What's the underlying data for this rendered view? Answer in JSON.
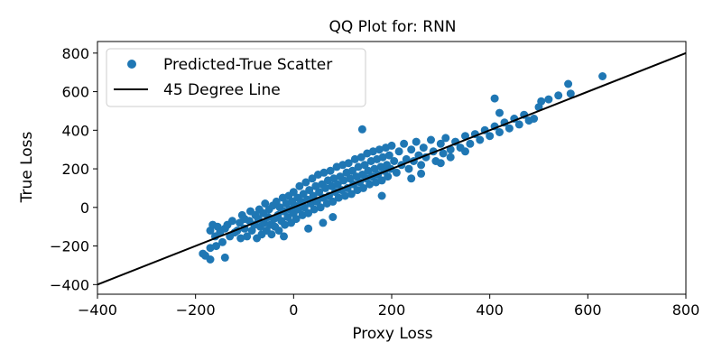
{
  "chart_data": {
    "type": "scatter",
    "title": "QQ Plot for: RNN",
    "xlabel": "Proxy Loss",
    "ylabel": "True Loss",
    "xlim": [
      -400,
      800
    ],
    "ylim": [
      -450,
      860
    ],
    "xticks": [
      -400,
      -200,
      0,
      200,
      400,
      600,
      800
    ],
    "yticks": [
      -400,
      -200,
      0,
      200,
      400,
      600,
      800
    ],
    "grid": false,
    "legend_position": "top-left",
    "series": [
      {
        "name": "Predicted-True Scatter",
        "kind": "scatter",
        "color": "#1f77b4",
        "points": [
          [
            -170,
            -120
          ],
          [
            -165,
            -90
          ],
          [
            -160,
            -150
          ],
          [
            -158,
            -200
          ],
          [
            -155,
            -100
          ],
          [
            -150,
            -130
          ],
          [
            -145,
            -180
          ],
          [
            -140,
            -110
          ],
          [
            -135,
            -90
          ],
          [
            -130,
            -150
          ],
          [
            -125,
            -70
          ],
          [
            -120,
            -130
          ],
          [
            -115,
            -120
          ],
          [
            -110,
            -80
          ],
          [
            -108,
            -160
          ],
          [
            -105,
            -40
          ],
          [
            -100,
            -110
          ],
          [
            -100,
            -60
          ],
          [
            -95,
            -150
          ],
          [
            -90,
            -70
          ],
          [
            -88,
            -20
          ],
          [
            -85,
            -120
          ],
          [
            -80,
            -90
          ],
          [
            -78,
            -40
          ],
          [
            -75,
            -160
          ],
          [
            -72,
            -60
          ],
          [
            -70,
            -10
          ],
          [
            -68,
            -100
          ],
          [
            -65,
            -140
          ],
          [
            -62,
            -30
          ],
          [
            -60,
            -80
          ],
          [
            -58,
            20
          ],
          [
            -55,
            -120
          ],
          [
            -52,
            -50
          ],
          [
            -50,
            -10
          ],
          [
            -48,
            -90
          ],
          [
            -45,
            -140
          ],
          [
            -42,
            10
          ],
          [
            -40,
            -60
          ],
          [
            -38,
            -100
          ],
          [
            -35,
            30
          ],
          [
            -32,
            -40
          ],
          [
            -30,
            -120
          ],
          [
            -28,
            0
          ],
          [
            -25,
            -70
          ],
          [
            -22,
            50
          ],
          [
            -20,
            -20
          ],
          [
            -18,
            -90
          ],
          [
            -15,
            20
          ],
          [
            -12,
            -50
          ],
          [
            -10,
            60
          ],
          [
            -8,
            -10
          ],
          [
            -5,
            -80
          ],
          [
            -3,
            30
          ],
          [
            0,
            -30
          ],
          [
            0,
            80
          ],
          [
            2,
            10
          ],
          [
            5,
            -60
          ],
          [
            8,
            50
          ],
          [
            10,
            -10
          ],
          [
            12,
            110
          ],
          [
            15,
            30
          ],
          [
            18,
            -40
          ],
          [
            20,
            70
          ],
          [
            22,
            0
          ],
          [
            25,
            130
          ],
          [
            28,
            40
          ],
          [
            30,
            -30
          ],
          [
            32,
            90
          ],
          [
            35,
            20
          ],
          [
            38,
            150
          ],
          [
            40,
            60
          ],
          [
            42,
            -10
          ],
          [
            45,
            110
          ],
          [
            48,
            30
          ],
          [
            50,
            170
          ],
          [
            52,
            80
          ],
          [
            55,
            0
          ],
          [
            58,
            120
          ],
          [
            60,
            50
          ],
          [
            62,
            180
          ],
          [
            65,
            100
          ],
          [
            68,
            20
          ],
          [
            70,
            140
          ],
          [
            72,
            60
          ],
          [
            75,
            190
          ],
          [
            78,
            110
          ],
          [
            80,
            30
          ],
          [
            82,
            150
          ],
          [
            85,
            80
          ],
          [
            88,
            210
          ],
          [
            90,
            120
          ],
          [
            92,
            50
          ],
          [
            95,
            160
          ],
          [
            98,
            90
          ],
          [
            100,
            220
          ],
          [
            102,
            140
          ],
          [
            105,
            60
          ],
          [
            108,
            180
          ],
          [
            110,
            100
          ],
          [
            112,
            230
          ],
          [
            115,
            150
          ],
          [
            118,
            70
          ],
          [
            120,
            190
          ],
          [
            122,
            120
          ],
          [
            125,
            250
          ],
          [
            128,
            160
          ],
          [
            130,
            90
          ],
          [
            132,
            210
          ],
          [
            135,
            130
          ],
          [
            138,
            260
          ],
          [
            140,
            170
          ],
          [
            142,
            100
          ],
          [
            145,
            220
          ],
          [
            148,
            150
          ],
          [
            150,
            280
          ],
          [
            152,
            190
          ],
          [
            155,
            120
          ],
          [
            158,
            240
          ],
          [
            160,
            160
          ],
          [
            162,
            290
          ],
          [
            165,
            200
          ],
          [
            168,
            130
          ],
          [
            170,
            250
          ],
          [
            172,
            170
          ],
          [
            175,
            300
          ],
          [
            178,
            210
          ],
          [
            180,
            140
          ],
          [
            182,
            260
          ],
          [
            185,
            190
          ],
          [
            188,
            310
          ],
          [
            190,
            220
          ],
          [
            192,
            160
          ],
          [
            195,
            270
          ],
          [
            198,
            200
          ],
          [
            200,
            320
          ],
          [
            205,
            240
          ],
          [
            210,
            180
          ],
          [
            215,
            290
          ],
          [
            220,
            220
          ],
          [
            225,
            330
          ],
          [
            230,
            250
          ],
          [
            235,
            200
          ],
          [
            240,
            300
          ],
          [
            245,
            240
          ],
          [
            250,
            340
          ],
          [
            255,
            270
          ],
          [
            260,
            220
          ],
          [
            265,
            310
          ],
          [
            270,
            260
          ],
          [
            280,
            350
          ],
          [
            285,
            290
          ],
          [
            290,
            240
          ],
          [
            300,
            330
          ],
          [
            305,
            280
          ],
          [
            310,
            360
          ],
          [
            320,
            300
          ],
          [
            330,
            340
          ],
          [
            340,
            310
          ],
          [
            350,
            370
          ],
          [
            360,
            330
          ],
          [
            370,
            380
          ],
          [
            380,
            350
          ],
          [
            390,
            400
          ],
          [
            400,
            370
          ],
          [
            410,
            420
          ],
          [
            420,
            390
          ],
          [
            430,
            440
          ],
          [
            440,
            410
          ],
          [
            450,
            460
          ],
          [
            460,
            430
          ],
          [
            470,
            480
          ],
          [
            480,
            450
          ],
          [
            490,
            460
          ],
          [
            500,
            520
          ],
          [
            505,
            550
          ],
          [
            520,
            560
          ],
          [
            540,
            580
          ],
          [
            560,
            640
          ],
          [
            565,
            590
          ],
          [
            630,
            680
          ],
          [
            410,
            565
          ],
          [
            140,
            405
          ],
          [
            420,
            490
          ],
          [
            300,
            230
          ],
          [
            320,
            260
          ],
          [
            350,
            290
          ],
          [
            180,
            60
          ],
          [
            240,
            150
          ],
          [
            260,
            175
          ],
          [
            80,
            -50
          ],
          [
            60,
            -80
          ],
          [
            30,
            -110
          ],
          [
            -20,
            -150
          ],
          [
            -180,
            -250
          ],
          [
            -170,
            -270
          ],
          [
            -140,
            -260
          ],
          [
            -170,
            -210
          ],
          [
            -185,
            -240
          ]
        ]
      },
      {
        "name": "45 Degree Line",
        "kind": "line",
        "color": "#000000",
        "points": [
          [
            -400,
            -400
          ],
          [
            800,
            800
          ]
        ]
      }
    ]
  }
}
